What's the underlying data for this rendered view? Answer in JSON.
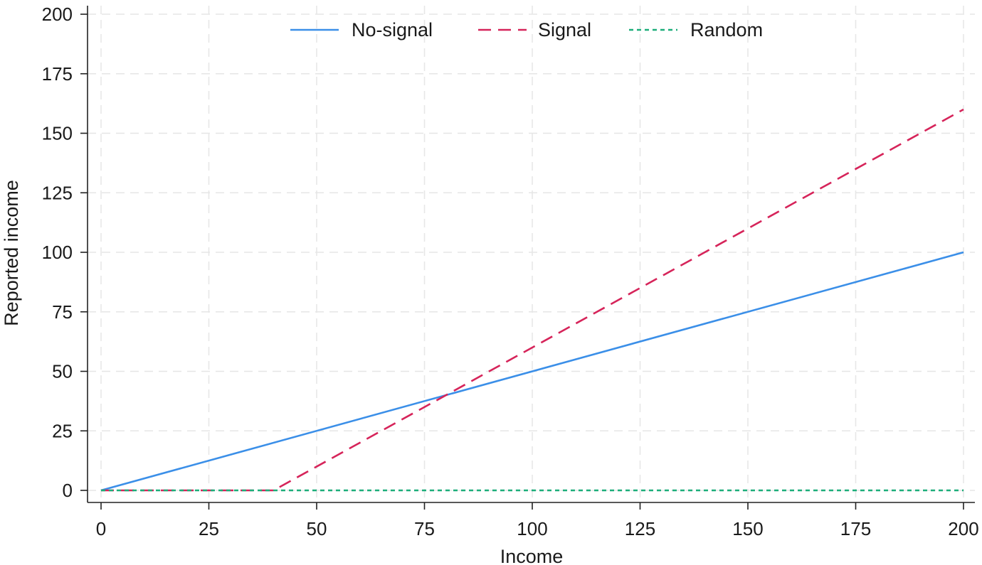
{
  "chart_data": {
    "type": "line",
    "title": "",
    "xlabel": "Income",
    "ylabel": "Reported income",
    "xlim": [
      0,
      200
    ],
    "ylim": [
      0,
      200
    ],
    "xticks": [
      0,
      25,
      50,
      75,
      100,
      125,
      150,
      175,
      200
    ],
    "yticks": [
      0,
      25,
      50,
      75,
      100,
      125,
      150,
      175,
      200
    ],
    "grid": true,
    "legend_position": "top-center",
    "series": [
      {
        "name": "No-signal",
        "style": "solid",
        "color": "#3b8fe8",
        "x": [
          0,
          200
        ],
        "y": [
          0,
          100
        ]
      },
      {
        "name": "Signal",
        "style": "dashed",
        "color": "#d6245a",
        "x": [
          0,
          40,
          200
        ],
        "y": [
          0,
          0,
          160
        ]
      },
      {
        "name": "Random",
        "style": "dotted",
        "color": "#1cae7a",
        "x": [
          0,
          200
        ],
        "y": [
          0,
          0
        ]
      }
    ]
  }
}
